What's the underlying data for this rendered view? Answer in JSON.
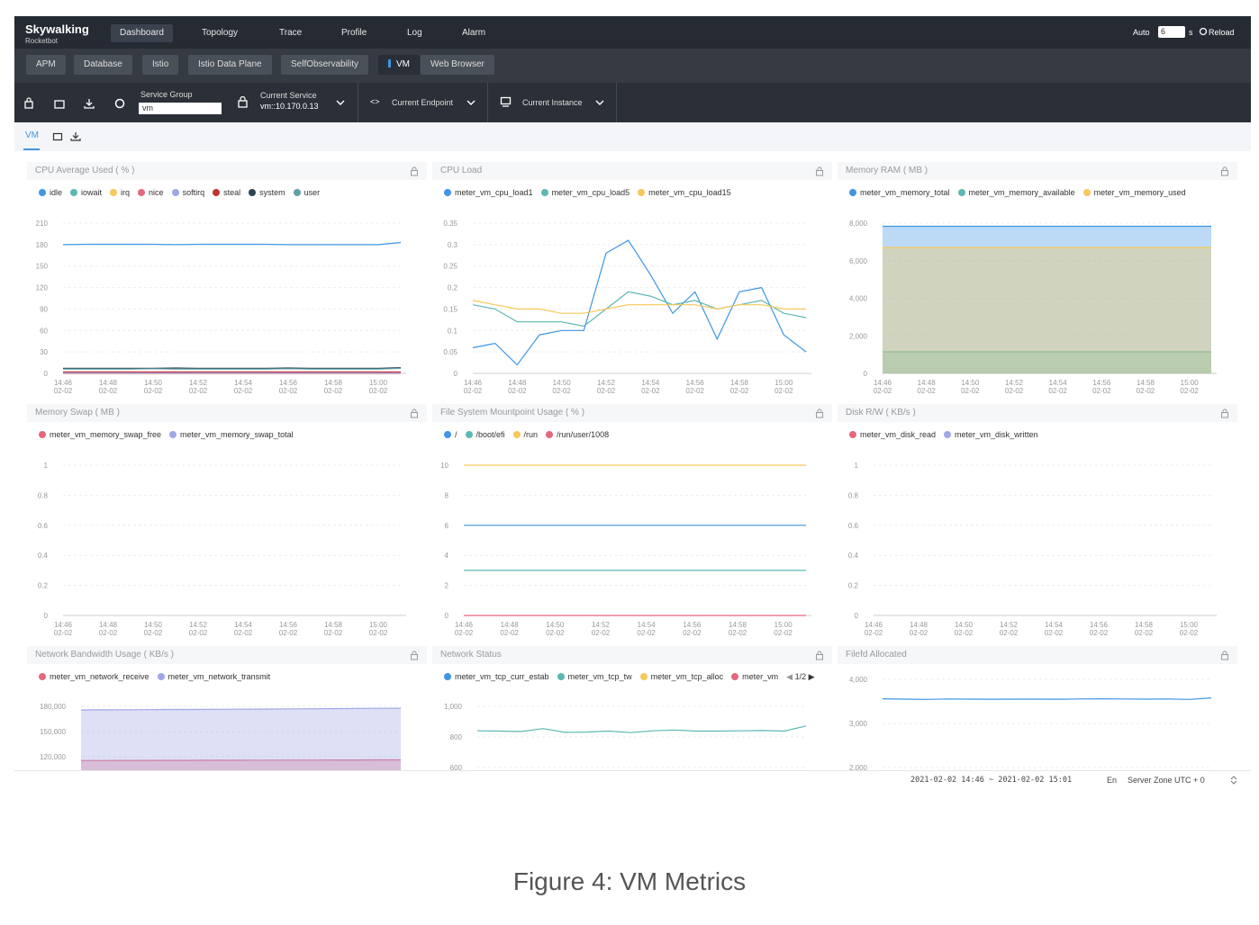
{
  "nav": {
    "logo": "Skywalking",
    "logo_sub": "Rocketbot",
    "items": [
      "Dashboard",
      "Topology",
      "Trace",
      "Profile",
      "Log",
      "Alarm"
    ],
    "active": 0,
    "auto": "Auto",
    "interval": "6",
    "interval_unit": "s",
    "reload": "Reload"
  },
  "tabs": {
    "items": [
      "APM",
      "Database",
      "Istio",
      "Istio Data Plane",
      "SelfObservability",
      "VM",
      "Web Browser"
    ],
    "active": 5
  },
  "toolbar": {
    "service_group_label": "Service Group",
    "service_group": "vm",
    "current_service_label": "Current Service",
    "current_service": "vm::10.170.0.13",
    "current_endpoint": "Current Endpoint",
    "current_instance": "Current Instance"
  },
  "dashboard_tab": "VM",
  "panels": [
    {
      "title": "CPU Average Used ( % )",
      "type": "line",
      "ylim": [
        0,
        210
      ],
      "yticks": [
        0,
        30,
        60,
        90,
        120,
        150,
        180,
        210
      ],
      "categories": [
        "14:46",
        null,
        "14:48",
        null,
        "14:50",
        null,
        "14:52",
        null,
        "14:54",
        null,
        "14:56",
        null,
        "14:58",
        null,
        "15:00",
        null
      ],
      "dates": [
        "02-02",
        null,
        "02-02",
        null,
        "02-02",
        null,
        "02-02",
        null,
        "02-02",
        null,
        "02-02",
        null,
        "02-02",
        null,
        "02-02",
        null
      ],
      "series": [
        {
          "name": "idle",
          "color": "#3f96e3",
          "values": [
            180,
            180.5,
            180.5,
            180.5,
            180.5,
            180,
            180.5,
            180.5,
            180.5,
            180.5,
            180,
            180,
            180,
            180,
            180,
            183
          ]
        },
        {
          "name": "iowait",
          "color": "#5cb8b2",
          "values": [
            0.5,
            0.5,
            0.5,
            0.5,
            0.5,
            0.5,
            0.5,
            0.5,
            0.5,
            0.5,
            0.5,
            0.5,
            0.5,
            0.5,
            0.5,
            0.5
          ]
        },
        {
          "name": "irq",
          "color": "#f7c85a",
          "values": [
            0,
            0,
            0,
            0,
            0,
            0,
            0,
            0,
            0,
            0,
            0,
            0,
            0,
            0,
            0,
            0
          ]
        },
        {
          "name": "nice",
          "color": "#e5677d",
          "values": [
            0,
            0,
            0,
            0,
            0,
            0,
            0,
            0,
            0,
            0,
            0,
            0,
            0,
            0,
            0,
            0
          ]
        },
        {
          "name": "softirq",
          "color": "#a0a7e6",
          "values": [
            0.5,
            0.5,
            0.5,
            0.5,
            0.5,
            0.5,
            0.5,
            0.5,
            0.5,
            0.5,
            0.5,
            0.5,
            0.5,
            0.5,
            0.5,
            0.5
          ]
        },
        {
          "name": "steal",
          "color": "#c23531",
          "values": [
            2,
            2,
            2,
            2,
            2,
            2,
            2,
            2,
            2,
            2,
            2,
            2,
            2,
            2,
            2,
            2
          ]
        },
        {
          "name": "system",
          "color": "#2f4554",
          "values": [
            7,
            7,
            7,
            7,
            7,
            7.5,
            7,
            7,
            7,
            7,
            7.5,
            7,
            7,
            7,
            7,
            8
          ]
        },
        {
          "name": "user",
          "color": "#61a0a8",
          "values": [
            6,
            6,
            6,
            6,
            6.5,
            6,
            6,
            6,
            6,
            6,
            6.5,
            6,
            6,
            6,
            6,
            7
          ]
        }
      ]
    },
    {
      "title": "CPU Load",
      "type": "line",
      "ylim": [
        0,
        0.35
      ],
      "yticks": [
        0,
        0.05,
        0.1,
        0.15,
        0.2,
        0.25,
        0.3,
        0.35
      ],
      "categories": [
        "14:46",
        null,
        "14:48",
        null,
        "14:50",
        null,
        "14:52",
        null,
        "14:54",
        null,
        "14:56",
        null,
        "14:58",
        null,
        "15:00",
        null
      ],
      "dates": [
        "02-02",
        null,
        "02-02",
        null,
        "02-02",
        null,
        "02-02",
        null,
        "02-02",
        null,
        "02-02",
        null,
        "02-02",
        null,
        "02-02",
        null
      ],
      "series": [
        {
          "name": "meter_vm_cpu_load1",
          "color": "#3f96e3",
          "values": [
            0.06,
            0.07,
            0.02,
            0.09,
            0.1,
            0.1,
            0.28,
            0.31,
            0.23,
            0.14,
            0.19,
            0.08,
            0.19,
            0.2,
            0.09,
            0.05
          ]
        },
        {
          "name": "meter_vm_cpu_load5",
          "color": "#5cb8b2",
          "values": [
            0.16,
            0.15,
            0.12,
            0.12,
            0.12,
            0.11,
            0.15,
            0.19,
            0.18,
            0.16,
            0.17,
            0.15,
            0.16,
            0.17,
            0.14,
            0.13
          ]
        },
        {
          "name": "meter_vm_cpu_load15",
          "color": "#f7c85a",
          "values": [
            0.17,
            0.16,
            0.15,
            0.15,
            0.14,
            0.14,
            0.15,
            0.16,
            0.16,
            0.16,
            0.16,
            0.15,
            0.16,
            0.16,
            0.15,
            0.15
          ]
        }
      ]
    },
    {
      "title": "Memory RAM ( MB )",
      "type": "area",
      "ylim": [
        0,
        8000
      ],
      "yticks": [
        0,
        {
          "value": 2000,
          "label": "2,000"
        },
        {
          "value": 4000,
          "label": "4,000"
        },
        {
          "value": 6000,
          "label": "6,000"
        },
        {
          "value": 8000,
          "label": "8,000"
        }
      ],
      "categories": [
        "14:46",
        null,
        "14:48",
        null,
        "14:50",
        null,
        "14:52",
        null,
        "14:54",
        null,
        "14:56",
        null,
        "14:58",
        null,
        "15:00",
        null
      ],
      "dates": [
        "02-02",
        null,
        "02-02",
        null,
        "02-02",
        null,
        "02-02",
        null,
        "02-02",
        null,
        "02-02",
        null,
        "02-02",
        null,
        "02-02",
        null
      ],
      "series": [
        {
          "name": "meter_vm_memory_total",
          "color": "#3f96e3",
          "values": [
            7830,
            7830,
            7830,
            7830,
            7830,
            7830,
            7830,
            7830,
            7830,
            7830,
            7830,
            7830,
            7830,
            7830,
            7830,
            7830
          ]
        },
        {
          "name": "meter_vm_memory_available",
          "color": "#5cb8b2",
          "values": [
            1150,
            1150,
            1150,
            1150,
            1150,
            1150,
            1150,
            1150,
            1150,
            1150,
            1150,
            1150,
            1150,
            1150,
            1150,
            1150
          ]
        },
        {
          "name": "meter_vm_memory_used",
          "color": "#f7c85a",
          "values": [
            6700,
            6700,
            6700,
            6700,
            6700,
            6700,
            6700,
            6700,
            6700,
            6700,
            6700,
            6700,
            6700,
            6700,
            6700,
            6700
          ]
        }
      ]
    },
    {
      "title": "Memory Swap ( MB )",
      "type": "line",
      "ylim": [
        0,
        1
      ],
      "yticks": [
        0,
        0.2,
        0.4,
        0.6,
        0.8,
        1
      ],
      "categories": [
        "14:46",
        null,
        "14:48",
        null,
        "14:50",
        null,
        "14:52",
        null,
        "14:54",
        null,
        "14:56",
        null,
        "14:58",
        null,
        "15:00",
        null
      ],
      "dates": [
        "02-02",
        null,
        "02-02",
        null,
        "02-02",
        null,
        "02-02",
        null,
        "02-02",
        null,
        "02-02",
        null,
        "02-02",
        null,
        "02-02",
        null
      ],
      "series": [
        {
          "name": "meter_vm_memory_swap_free",
          "color": "#e5677d"
        },
        {
          "name": "meter_vm_memory_swap_total",
          "color": "#a0a7e6"
        }
      ]
    },
    {
      "title": "File System Mountpoint Usage ( % )",
      "type": "line",
      "ylim": [
        0,
        10
      ],
      "yticks": [
        0,
        2,
        4,
        6,
        8,
        10
      ],
      "categories": [
        "14:46",
        null,
        "14:48",
        null,
        "14:50",
        null,
        "14:52",
        null,
        "14:54",
        null,
        "14:56",
        null,
        "14:58",
        null,
        "15:00",
        null
      ],
      "dates": [
        "02-02",
        null,
        "02-02",
        null,
        "02-02",
        null,
        "02-02",
        null,
        "02-02",
        null,
        "02-02",
        null,
        "02-02",
        null,
        "02-02",
        null
      ],
      "series": [
        {
          "name": "/",
          "color": "#3f96e3",
          "values": [
            6,
            6,
            6,
            6,
            6,
            6,
            6,
            6,
            6,
            6,
            6,
            6,
            6,
            6,
            6,
            6
          ]
        },
        {
          "name": "/boot/efi",
          "color": "#5cb8b2",
          "values": [
            3,
            3,
            3,
            3,
            3,
            3,
            3,
            3,
            3,
            3,
            3,
            3,
            3,
            3,
            3,
            3
          ]
        },
        {
          "name": "/run",
          "color": "#f7c85a",
          "values": [
            10,
            10,
            10,
            10,
            10,
            10,
            10,
            10,
            10,
            10,
            10,
            10,
            10,
            10,
            10,
            10
          ]
        },
        {
          "name": "/run/user/1008",
          "color": "#e5677d",
          "values": [
            0,
            0,
            0,
            0,
            0,
            0,
            0,
            0,
            0,
            0,
            0,
            0,
            0,
            0,
            0,
            0
          ]
        }
      ]
    },
    {
      "title": "Disk R/W ( KB/s )",
      "type": "line",
      "ylim": [
        0,
        1
      ],
      "yticks": [
        0,
        0.2,
        0.4,
        0.6,
        0.8,
        1
      ],
      "categories": [
        "14:46",
        null,
        "14:48",
        null,
        "14:50",
        null,
        "14:52",
        null,
        "14:54",
        null,
        "14:56",
        null,
        "14:58",
        null,
        "15:00",
        null
      ],
      "dates": [
        "02-02",
        null,
        "02-02",
        null,
        "02-02",
        null,
        "02-02",
        null,
        "02-02",
        null,
        "02-02",
        null,
        "02-02",
        null,
        "02-02",
        null
      ],
      "series": [
        {
          "name": "meter_vm_disk_read",
          "color": "#e5677d"
        },
        {
          "name": "meter_vm_disk_written",
          "color": "#a0a7e6"
        }
      ]
    },
    {
      "title": "Network Bandwidth Usage ( KB/s )",
      "type": "area",
      "ylim": [
        120000,
        180000
      ],
      "yticks": [
        {
          "value": 120000,
          "label": "120,000"
        },
        {
          "value": 150000,
          "label": "150,000"
        },
        {
          "value": 180000,
          "label": "180,000"
        }
      ],
      "series": [
        {
          "name": "meter_vm_network_receive",
          "color": "#e5677d",
          "values": [
            115500,
            115500,
            115600,
            115600,
            115700,
            115700,
            115800,
            115800,
            115900,
            115900,
            116000,
            116000,
            116100,
            116100,
            116200,
            116300
          ]
        },
        {
          "name": "meter_vm_network_transmit",
          "color": "#a0a7e6",
          "values": [
            175700,
            175800,
            175900,
            176000,
            176200,
            176300,
            176400,
            176600,
            176700,
            176800,
            177000,
            177100,
            177300,
            177500,
            177600,
            177800
          ]
        }
      ]
    },
    {
      "title": "Network Status",
      "type": "line",
      "ylim": [
        600,
        1000
      ],
      "yticks": [
        600,
        800,
        {
          "value": 1000,
          "label": "1,000"
        }
      ],
      "legend_page": "1/2",
      "series": [
        {
          "name": "meter_vm_tcp_curr_estab",
          "color": "#3f96e3"
        },
        {
          "name": "meter_vm_tcp_tw",
          "color": "#5cb8b2",
          "values": [
            840,
            838,
            835,
            855,
            830,
            832,
            838,
            828,
            840,
            845,
            838,
            838,
            840,
            842,
            838,
            872
          ]
        },
        {
          "name": "meter_vm_tcp_alloc",
          "color": "#f7c85a"
        },
        {
          "name": "meter_vm",
          "color": "#e5677d"
        }
      ]
    },
    {
      "title": "Filefd Allocated",
      "type": "line",
      "ylim": [
        2000,
        4000
      ],
      "yticks": [
        {
          "value": 2000,
          "label": "2,000"
        },
        {
          "value": 3000,
          "label": "3,000"
        },
        {
          "value": 4000,
          "label": "4,000"
        }
      ],
      "series": [
        {
          "color": "#3f96e3",
          "values": [
            3560,
            3550,
            3545,
            3555,
            3550,
            3548,
            3550,
            3552,
            3548,
            3555,
            3560,
            3555,
            3550,
            3555,
            3545,
            3580
          ]
        }
      ]
    }
  ],
  "footer": {
    "time_range": "2021-02-02 14:46 ~ 2021-02-02 15:01",
    "language": "En",
    "server_zone": "Server Zone UTC + 0"
  },
  "caption": "Figure 4: VM Metrics"
}
